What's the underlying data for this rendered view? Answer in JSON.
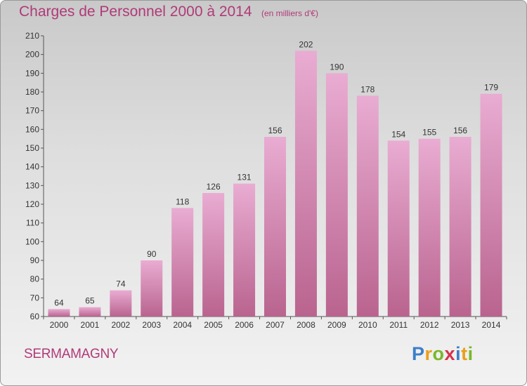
{
  "title": "Charges de Personnel 2000 à 2014",
  "subtitle": "(en milliers d'€)",
  "commune": "SERMAMAGNY",
  "logo": {
    "letters": [
      "P",
      "r",
      "o",
      "x",
      "i",
      "t",
      "i"
    ],
    "colors": [
      "#3d7fc8",
      "#e8a019",
      "#78b829",
      "#d6304a",
      "#3d7fc8",
      "#e8a019",
      "#78b829"
    ]
  },
  "colors": {
    "bar_top": "#e9acd2",
    "bar_bottom": "#b9648f",
    "accent": "#b03a78"
  },
  "chart_data": {
    "type": "bar",
    "title": "Charges de Personnel 2000 à 2014",
    "subtitle": "(en milliers d'€)",
    "categories": [
      "2000",
      "2001",
      "2002",
      "2003",
      "2004",
      "2005",
      "2006",
      "2007",
      "2008",
      "2009",
      "2010",
      "2011",
      "2012",
      "2013",
      "2014"
    ],
    "values": [
      64,
      65,
      74,
      90,
      118,
      126,
      131,
      156,
      202,
      190,
      178,
      154,
      155,
      156,
      179
    ],
    "ylim": [
      60,
      210
    ],
    "yticks": [
      60,
      70,
      80,
      90,
      100,
      110,
      120,
      130,
      140,
      150,
      160,
      170,
      180,
      190,
      200,
      210
    ],
    "grid": false,
    "data_labels": true
  }
}
